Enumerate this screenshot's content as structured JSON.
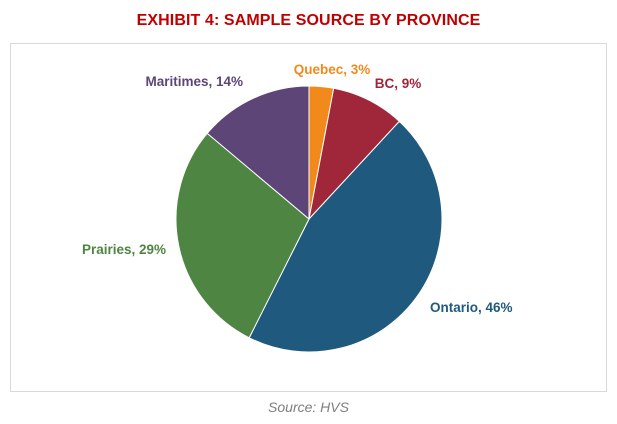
{
  "chart_data": {
    "type": "pie",
    "title": "EXHIBIT 4: SAMPLE SOURCE BY PROVINCE",
    "source": "Source: HVS",
    "title_color": "#c00000",
    "series": [
      {
        "name": "",
        "slices": [
          {
            "label": "Quebec",
            "value": 3,
            "display": "Quebec, 3%",
            "color": "#f28a1b"
          },
          {
            "label": "BC",
            "value": 9,
            "display": "BC, 9%",
            "color": "#a0263a"
          },
          {
            "label": "Ontario",
            "value": 46,
            "display": "Ontario, 46%",
            "color": "#1f5a7e"
          },
          {
            "label": "Prairies",
            "value": 29,
            "display": "Prairies, 29%",
            "color": "#4e8542"
          },
          {
            "label": "Maritimes",
            "value": 14,
            "display": "Maritimes, 14%",
            "color": "#5d4677"
          }
        ]
      }
    ],
    "legend": "none",
    "grid": false
  }
}
